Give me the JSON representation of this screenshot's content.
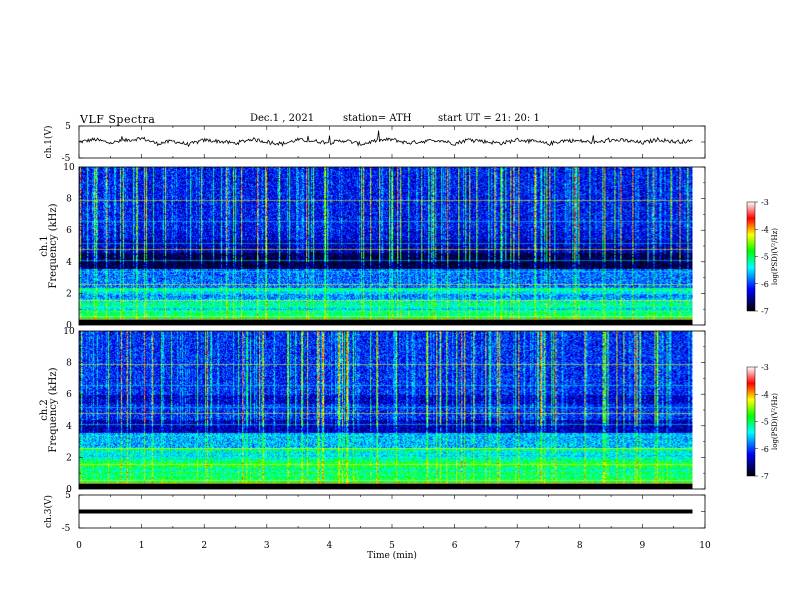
{
  "header": {
    "title": "VLF  Spectra",
    "date": "Dec.1  , 2021",
    "station": "station= ATH",
    "start": "start  UT  =    21: 20: 1"
  },
  "panels": {
    "ch1_voltage": {
      "ylabel": "ch.1(V)",
      "yticks": [
        "5",
        "-5"
      ]
    },
    "ch1_spectrogram": {
      "ylabel": "Frequency (kHz)",
      "ylabel2": "ch.1",
      "yticks": [
        "10",
        "8",
        "6",
        "4",
        "2",
        "0"
      ]
    },
    "ch2_spectrogram": {
      "ylabel": "Frequency (kHz)",
      "ylabel2": "ch.2",
      "yticks": [
        "10",
        "8",
        "6",
        "4",
        "2",
        "0"
      ]
    },
    "ch3_voltage": {
      "ylabel": "ch.3(V)",
      "yticks": [
        "5",
        "-5"
      ]
    }
  },
  "xaxis": {
    "label": "Time  (min)",
    "ticks": [
      "0",
      "1",
      "2",
      "3",
      "4",
      "5",
      "6",
      "7",
      "8",
      "9",
      "10"
    ]
  },
  "colorbar": {
    "label": "log(PSD)(V²/Hz)",
    "ticks": [
      "-3",
      "-4",
      "-5",
      "-6",
      "-7"
    ],
    "colors": [
      "#ffffff",
      "#ff0000",
      "#ffff00",
      "#00ff00",
      "#00ffff",
      "#0000ff",
      "#000000"
    ]
  },
  "chart_data": [
    {
      "type": "line",
      "name": "ch.1(V)",
      "xlim": [
        0,
        10
      ],
      "ylim": [
        -5,
        5
      ],
      "x": [
        0,
        0.25,
        0.5,
        0.75,
        1,
        1.25,
        1.5,
        1.75,
        2,
        2.25,
        2.5,
        2.75,
        3,
        3.25,
        3.5,
        3.75,
        4,
        4.25,
        4.5,
        4.75,
        5,
        5.25,
        5.5,
        5.75,
        6,
        6.25,
        6.5,
        6.75,
        7,
        7.25,
        7.5,
        7.75,
        8,
        8.25,
        8.5,
        8.75,
        9,
        9.25,
        9.5,
        9.8
      ],
      "y": [
        0,
        0.8,
        -0.3,
        0.5,
        1.2,
        -0.5,
        0.3,
        -0.8,
        0.6,
        0.2,
        -0.4,
        0.9,
        0.1,
        -0.6,
        0.7,
        0.3,
        -0.2,
        0.5,
        -0.7,
        0.4,
        0.8,
        -0.3,
        0.2,
        0.6,
        -0.5,
        0.9,
        0.1,
        -0.4,
        0.7,
        0.2,
        -0.6,
        0.5,
        0.3,
        -0.2,
        0.6,
        0.4,
        -0.3,
        0.8,
        0.1,
        0.2
      ]
    },
    {
      "type": "heatmap",
      "name": "ch.1",
      "xlim": [
        0,
        10
      ],
      "ylim": [
        0,
        10
      ],
      "xlabel": "Time  (min)",
      "ylabel": "Frequency (kHz)",
      "colorbar_range": [
        -7,
        -3
      ]
    },
    {
      "type": "heatmap",
      "name": "ch.2",
      "xlim": [
        0,
        10
      ],
      "ylim": [
        0,
        10
      ],
      "xlabel": "Time  (min)",
      "ylabel": "Frequency (kHz)",
      "colorbar_range": [
        -7,
        -3
      ]
    },
    {
      "type": "line",
      "name": "ch.3(V)",
      "xlim": [
        0,
        10
      ],
      "ylim": [
        -5,
        5
      ],
      "x": [
        0,
        9.8
      ],
      "y": [
        0,
        0
      ]
    }
  ]
}
